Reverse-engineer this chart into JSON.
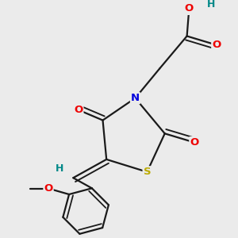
{
  "background_color": "#ebebeb",
  "atom_colors": {
    "C": "#1a1a1a",
    "N": "#0000dd",
    "O": "#ee0000",
    "S": "#bbaa00",
    "H": "#008888"
  },
  "bond_color": "#1a1a1a",
  "bond_width": 1.6,
  "figsize": [
    3.0,
    3.0
  ],
  "dpi": 100
}
